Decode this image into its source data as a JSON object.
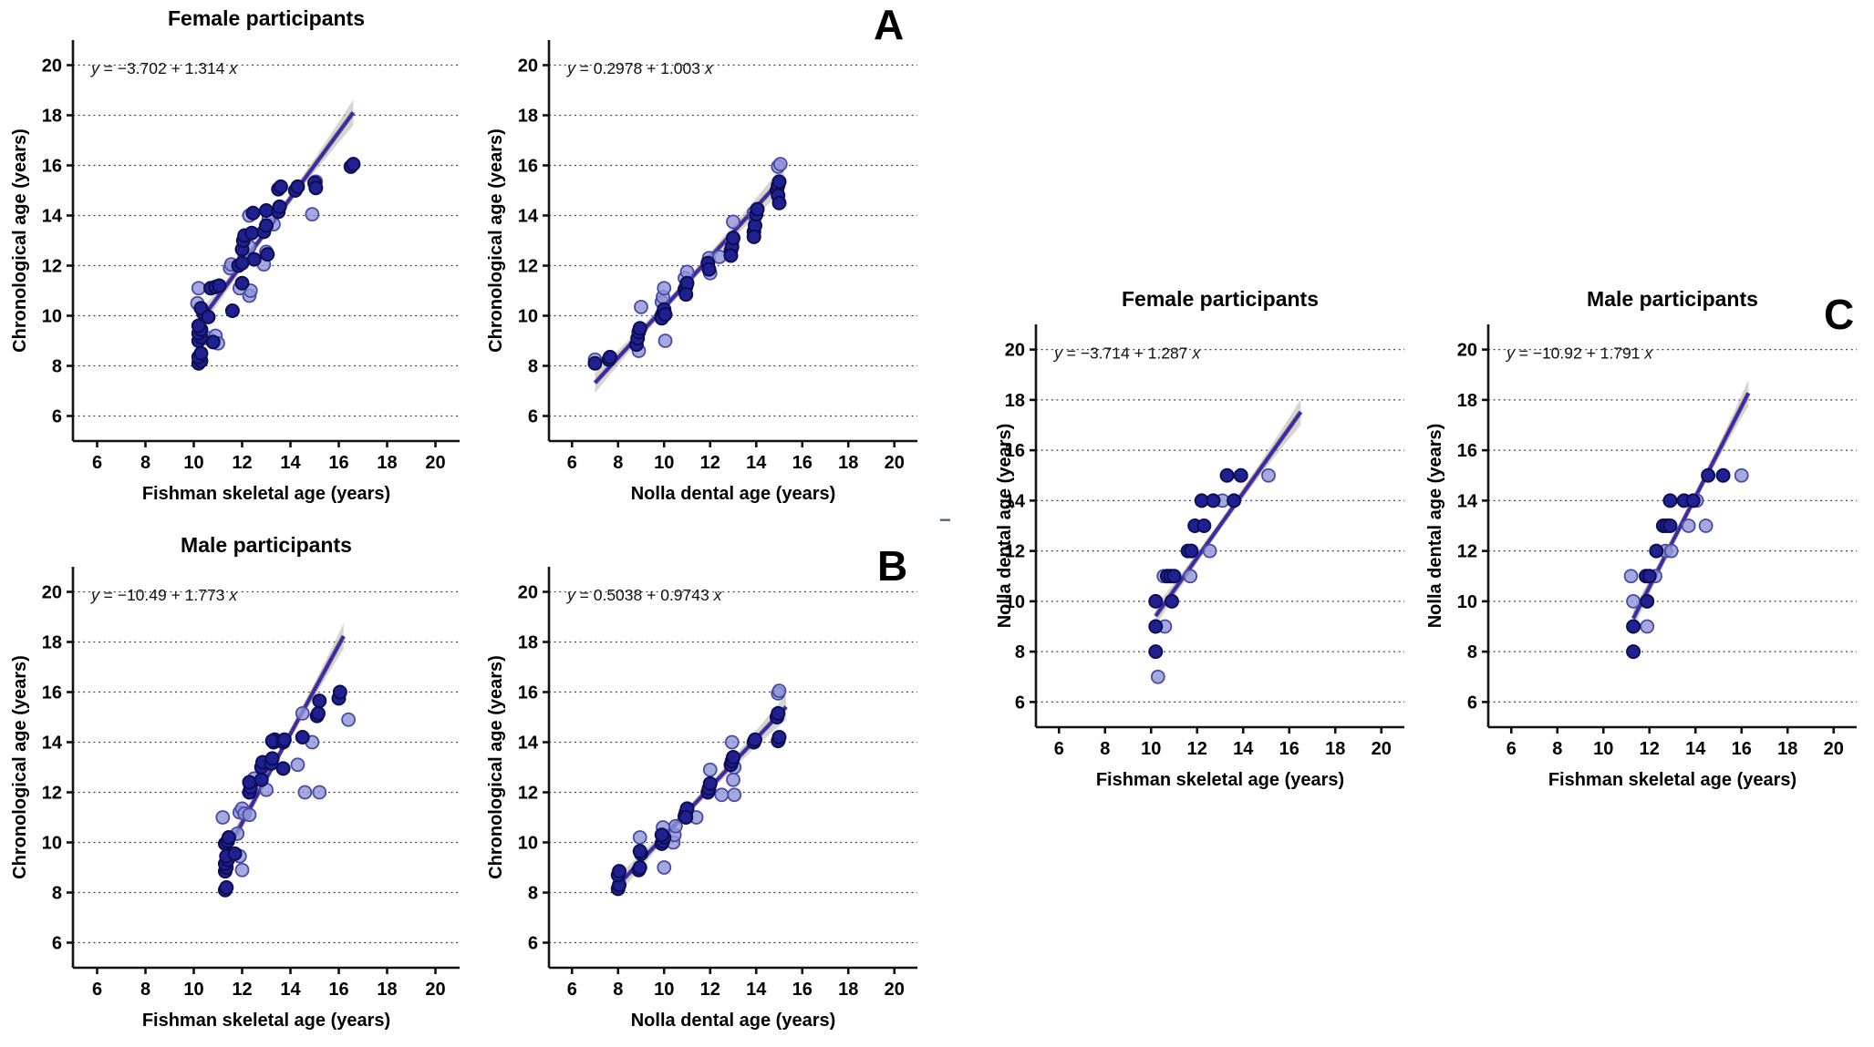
{
  "figure": {
    "panel_a_label": "A",
    "panel_b_label": "B",
    "panel_c_label": "C",
    "artifact_dash": "−"
  },
  "colors": {
    "point_dark": "#1f2191",
    "point_dark_stroke": "#0d0d55",
    "point_light": "#9094d6",
    "point_light_stroke": "#474ba6",
    "line": "#2b2bc0",
    "line_under": "#8a4a3a",
    "ribbon": "#b9b9b9",
    "grid": "#444444",
    "axis": "#111111"
  },
  "chart_data": [
    {
      "type": "scatter",
      "panel": "A",
      "title": "Female participants",
      "equation": "y = −3.702 + 1.314 x",
      "xlabel": "Fishman skeletal age (years)",
      "ylabel": "Chronological age (years)",
      "xlim": [
        5,
        21
      ],
      "ylim": [
        5,
        21
      ],
      "xticks": [
        6,
        8,
        10,
        12,
        14,
        16,
        18,
        20
      ],
      "yticks": [
        6,
        8,
        10,
        12,
        14,
        16,
        18,
        20
      ],
      "grid": "horizontal-dotted",
      "legend": "none",
      "regression": {
        "intercept": -3.702,
        "slope": 1.314,
        "x_start": 10.2,
        "x_end": 16.6
      },
      "points_dark": [
        [
          10.2,
          8.1
        ],
        [
          10.3,
          8.2
        ],
        [
          10.2,
          8.35
        ],
        [
          10.3,
          8.5
        ],
        [
          10.2,
          9.0
        ],
        [
          10.3,
          9.15
        ],
        [
          10.2,
          9.3
        ],
        [
          10.3,
          9.45
        ],
        [
          10.2,
          9.6
        ],
        [
          10.4,
          10.1
        ],
        [
          10.3,
          10.3
        ],
        [
          10.6,
          9.95
        ],
        [
          10.8,
          8.95
        ],
        [
          10.7,
          11.1
        ],
        [
          10.9,
          11.15
        ],
        [
          11.05,
          11.2
        ],
        [
          11.6,
          10.2
        ],
        [
          11.85,
          12.0
        ],
        [
          12.0,
          12.1
        ],
        [
          12.0,
          12.65
        ],
        [
          12.05,
          13.0
        ],
        [
          12.1,
          13.2
        ],
        [
          12.0,
          11.3
        ],
        [
          12.4,
          13.3
        ],
        [
          12.45,
          14.1
        ],
        [
          12.5,
          12.25
        ],
        [
          12.9,
          13.35
        ],
        [
          13.0,
          13.6
        ],
        [
          13.0,
          14.2
        ],
        [
          13.05,
          12.45
        ],
        [
          13.5,
          14.15
        ],
        [
          13.55,
          14.35
        ],
        [
          13.5,
          15.05
        ],
        [
          13.6,
          15.15
        ],
        [
          14.2,
          15.0
        ],
        [
          14.3,
          15.15
        ],
        [
          15.0,
          15.3
        ],
        [
          15.05,
          15.1
        ],
        [
          16.5,
          15.95
        ],
        [
          16.6,
          16.05
        ]
      ],
      "points_light": [
        [
          10.15,
          10.5
        ],
        [
          10.2,
          11.1
        ],
        [
          10.6,
          9.1
        ],
        [
          10.9,
          9.2
        ],
        [
          11.0,
          8.9
        ],
        [
          11.5,
          11.9
        ],
        [
          11.55,
          12.05
        ],
        [
          12.3,
          10.8
        ],
        [
          12.35,
          11.0
        ],
        [
          12.1,
          12.4
        ],
        [
          12.3,
          12.75
        ],
        [
          12.9,
          12.05
        ],
        [
          13.0,
          12.55
        ],
        [
          12.3,
          14.0
        ],
        [
          13.3,
          13.65
        ],
        [
          14.9,
          14.05
        ],
        [
          15.05,
          15.35
        ],
        [
          11.9,
          11.1
        ],
        [
          13.1,
          13.85
        ]
      ]
    },
    {
      "type": "scatter",
      "panel": "A",
      "title": "",
      "equation": "y = 0.2978 + 1.003 x",
      "xlabel": "Nolla dental age (years)",
      "ylabel": "Chronological age (years)",
      "xlim": [
        5,
        21
      ],
      "ylim": [
        5,
        21
      ],
      "xticks": [
        6,
        8,
        10,
        12,
        14,
        16,
        18,
        20
      ],
      "yticks": [
        6,
        8,
        10,
        12,
        14,
        16,
        18,
        20
      ],
      "grid": "horizontal-dotted",
      "legend": "none",
      "regression": {
        "intercept": 0.2978,
        "slope": 1.003,
        "x_start": 7.0,
        "x_end": 15.2
      },
      "points_dark": [
        [
          7.0,
          8.1
        ],
        [
          7.6,
          8.25
        ],
        [
          7.65,
          8.35
        ],
        [
          8.8,
          8.85
        ],
        [
          8.85,
          9.1
        ],
        [
          8.9,
          9.35
        ],
        [
          8.95,
          9.5
        ],
        [
          9.9,
          10.0
        ],
        [
          9.95,
          10.1
        ],
        [
          10.0,
          10.25
        ],
        [
          9.9,
          9.9
        ],
        [
          10.05,
          10.05
        ],
        [
          10.9,
          11.05
        ],
        [
          10.95,
          11.15
        ],
        [
          11.0,
          11.3
        ],
        [
          10.95,
          10.85
        ],
        [
          11.9,
          12.1
        ],
        [
          11.95,
          11.85
        ],
        [
          12.9,
          12.6
        ],
        [
          12.95,
          12.75
        ],
        [
          12.9,
          12.4
        ],
        [
          13.0,
          13.1
        ],
        [
          13.9,
          13.35
        ],
        [
          13.95,
          13.6
        ],
        [
          13.9,
          13.15
        ],
        [
          14.0,
          14.05
        ],
        [
          14.05,
          14.25
        ],
        [
          14.9,
          15.0
        ],
        [
          14.95,
          15.2
        ],
        [
          15.0,
          15.35
        ],
        [
          14.95,
          14.8
        ],
        [
          15.0,
          14.5
        ]
      ],
      "points_light": [
        [
          7.0,
          8.25
        ],
        [
          8.9,
          8.6
        ],
        [
          9.0,
          10.35
        ],
        [
          9.9,
          10.55
        ],
        [
          9.95,
          10.75
        ],
        [
          10.0,
          11.1
        ],
        [
          10.05,
          9.0
        ],
        [
          10.9,
          11.5
        ],
        [
          11.0,
          11.75
        ],
        [
          11.95,
          12.3
        ],
        [
          12.0,
          11.7
        ],
        [
          12.4,
          12.35
        ],
        [
          13.0,
          13.75
        ],
        [
          13.95,
          13.95
        ],
        [
          13.9,
          14.1
        ],
        [
          14.95,
          15.95
        ],
        [
          15.05,
          16.05
        ],
        [
          12.95,
          12.9
        ]
      ]
    },
    {
      "type": "scatter",
      "panel": "B",
      "title": "Male participants",
      "equation": "y = −10.49 + 1.773 x",
      "xlabel": "Fishman skeletal age (years)",
      "ylabel": "Chronological age (years)",
      "xlim": [
        5,
        21
      ],
      "ylim": [
        5,
        21
      ],
      "xticks": [
        6,
        8,
        10,
        12,
        14,
        16,
        18,
        20
      ],
      "yticks": [
        6,
        8,
        10,
        12,
        14,
        16,
        18,
        20
      ],
      "grid": "horizontal-dotted",
      "legend": "none",
      "regression": {
        "intercept": -10.49,
        "slope": 1.773,
        "x_start": 11.3,
        "x_end": 16.2
      },
      "points_dark": [
        [
          11.3,
          8.1
        ],
        [
          11.35,
          8.2
        ],
        [
          11.3,
          8.85
        ],
        [
          11.35,
          9.0
        ],
        [
          11.3,
          9.15
        ],
        [
          11.4,
          9.3
        ],
        [
          11.35,
          9.45
        ],
        [
          11.3,
          9.95
        ],
        [
          11.4,
          10.05
        ],
        [
          11.45,
          10.2
        ],
        [
          11.7,
          9.55
        ],
        [
          12.3,
          12.0
        ],
        [
          12.35,
          12.2
        ],
        [
          12.3,
          12.4
        ],
        [
          12.8,
          13.0
        ],
        [
          12.85,
          13.2
        ],
        [
          12.8,
          12.5
        ],
        [
          13.2,
          13.15
        ],
        [
          13.25,
          13.35
        ],
        [
          13.3,
          14.0
        ],
        [
          13.35,
          14.1
        ],
        [
          13.25,
          14.05
        ],
        [
          13.7,
          14.0
        ],
        [
          13.75,
          14.1
        ],
        [
          13.7,
          12.95
        ],
        [
          14.5,
          14.2
        ],
        [
          15.1,
          15.05
        ],
        [
          15.15,
          15.15
        ],
        [
          15.2,
          15.65
        ],
        [
          16.0,
          15.75
        ],
        [
          16.05,
          16.0
        ]
      ],
      "points_light": [
        [
          11.2,
          11.0
        ],
        [
          11.9,
          11.2
        ],
        [
          12.0,
          11.35
        ],
        [
          12.1,
          11.15
        ],
        [
          11.8,
          10.35
        ],
        [
          11.9,
          9.45
        ],
        [
          12.0,
          8.9
        ],
        [
          12.3,
          11.1
        ],
        [
          12.9,
          12.95
        ],
        [
          13.0,
          12.1
        ],
        [
          14.3,
          13.1
        ],
        [
          14.6,
          12.0
        ],
        [
          15.2,
          12.0
        ],
        [
          14.9,
          14.0
        ],
        [
          16.4,
          14.9
        ],
        [
          14.5,
          15.15
        ],
        [
          12.5,
          12.55
        ]
      ]
    },
    {
      "type": "scatter",
      "panel": "B",
      "title": "",
      "equation": "y = 0.5038 + 0.9743 x",
      "xlabel": "Nolla dental age (years)",
      "ylabel": "Chronological age (years)",
      "xlim": [
        5,
        21
      ],
      "ylim": [
        5,
        21
      ],
      "xticks": [
        6,
        8,
        10,
        12,
        14,
        16,
        18,
        20
      ],
      "yticks": [
        6,
        8,
        10,
        12,
        14,
        16,
        18,
        20
      ],
      "grid": "horizontal-dotted",
      "legend": "none",
      "regression": {
        "intercept": 0.5038,
        "slope": 0.9743,
        "x_start": 8.0,
        "x_end": 15.3
      },
      "points_dark": [
        [
          8.0,
          8.15
        ],
        [
          8.05,
          8.3
        ],
        [
          8.0,
          8.7
        ],
        [
          8.05,
          8.85
        ],
        [
          8.9,
          8.9
        ],
        [
          8.95,
          9.0
        ],
        [
          9.0,
          9.55
        ],
        [
          8.95,
          9.65
        ],
        [
          9.9,
          9.95
        ],
        [
          9.95,
          10.05
        ],
        [
          10.0,
          10.2
        ],
        [
          9.9,
          10.3
        ],
        [
          10.9,
          11.05
        ],
        [
          10.95,
          11.2
        ],
        [
          11.0,
          11.35
        ],
        [
          10.95,
          11.0
        ],
        [
          11.9,
          12.0
        ],
        [
          11.95,
          12.15
        ],
        [
          12.0,
          12.35
        ],
        [
          12.9,
          13.1
        ],
        [
          12.95,
          13.25
        ],
        [
          13.0,
          13.4
        ],
        [
          13.9,
          14.0
        ],
        [
          13.95,
          14.1
        ],
        [
          14.9,
          15.0
        ],
        [
          14.95,
          14.05
        ],
        [
          15.0,
          14.2
        ],
        [
          14.95,
          15.15
        ]
      ],
      "points_light": [
        [
          8.95,
          10.2
        ],
        [
          9.95,
          10.6
        ],
        [
          10.0,
          9.0
        ],
        [
          10.4,
          10.0
        ],
        [
          10.45,
          10.3
        ],
        [
          10.5,
          10.65
        ],
        [
          11.4,
          11.0
        ],
        [
          12.0,
          12.9
        ],
        [
          12.5,
          11.9
        ],
        [
          13.0,
          12.5
        ],
        [
          13.05,
          11.9
        ],
        [
          12.95,
          14.0
        ],
        [
          14.95,
          15.95
        ],
        [
          15.0,
          16.05
        ],
        [
          13.05,
          13.0
        ]
      ]
    },
    {
      "type": "scatter",
      "panel": "C",
      "title": "Female participants",
      "equation": "y = −3.714 + 1.287 x",
      "xlabel": "Fishman skeletal age (years)",
      "ylabel": "Nolla dental age (years)",
      "xlim": [
        5,
        21
      ],
      "ylim": [
        5,
        21
      ],
      "xticks": [
        6,
        8,
        10,
        12,
        14,
        16,
        18,
        20
      ],
      "yticks": [
        6,
        8,
        10,
        12,
        14,
        16,
        18,
        20
      ],
      "grid": "horizontal-dotted",
      "legend": "none",
      "regression": {
        "intercept": -3.714,
        "slope": 1.287,
        "x_start": 10.2,
        "x_end": 16.5
      },
      "points_dark": [
        [
          10.2,
          8.0
        ],
        [
          10.2,
          9.0
        ],
        [
          10.2,
          10.0
        ],
        [
          10.9,
          10.0
        ],
        [
          10.7,
          11.0
        ],
        [
          10.85,
          11.0
        ],
        [
          11.0,
          11.0
        ],
        [
          11.6,
          12.0
        ],
        [
          11.75,
          12.0
        ],
        [
          11.9,
          13.0
        ],
        [
          12.3,
          13.0
        ],
        [
          12.2,
          14.0
        ],
        [
          12.7,
          14.0
        ],
        [
          13.6,
          14.0
        ],
        [
          13.3,
          15.0
        ],
        [
          13.9,
          15.0
        ]
      ],
      "points_light": [
        [
          10.3,
          7.0
        ],
        [
          10.6,
          9.0
        ],
        [
          10.55,
          11.0
        ],
        [
          11.7,
          11.0
        ],
        [
          12.55,
          12.0
        ],
        [
          13.1,
          14.0
        ],
        [
          15.1,
          15.0
        ]
      ]
    },
    {
      "type": "scatter",
      "panel": "C",
      "title": "Male participants",
      "equation": "y = −10.92 + 1.791 x",
      "xlabel": "Fishman skeletal age (years)",
      "ylabel": "Nolla dental age (years)",
      "xlim": [
        5,
        21
      ],
      "ylim": [
        5,
        21
      ],
      "xticks": [
        6,
        8,
        10,
        12,
        14,
        16,
        18,
        20
      ],
      "yticks": [
        6,
        8,
        10,
        12,
        14,
        16,
        18,
        20
      ],
      "grid": "horizontal-dotted",
      "legend": "none",
      "regression": {
        "intercept": -10.92,
        "slope": 1.791,
        "x_start": 11.3,
        "x_end": 16.3
      },
      "points_dark": [
        [
          11.3,
          8.0
        ],
        [
          11.3,
          9.0
        ],
        [
          11.9,
          10.0
        ],
        [
          11.85,
          11.0
        ],
        [
          12.0,
          11.0
        ],
        [
          12.3,
          12.0
        ],
        [
          12.6,
          13.0
        ],
        [
          12.75,
          13.0
        ],
        [
          12.9,
          13.0
        ],
        [
          12.9,
          14.0
        ],
        [
          13.5,
          14.0
        ],
        [
          13.9,
          14.0
        ],
        [
          14.55,
          15.0
        ],
        [
          15.2,
          15.0
        ]
      ],
      "points_light": [
        [
          11.9,
          9.0
        ],
        [
          11.3,
          10.0
        ],
        [
          11.2,
          11.0
        ],
        [
          12.25,
          11.0
        ],
        [
          12.7,
          12.0
        ],
        [
          12.95,
          12.0
        ],
        [
          13.7,
          13.0
        ],
        [
          14.45,
          13.0
        ],
        [
          14.05,
          14.0
        ],
        [
          16.0,
          15.0
        ]
      ]
    }
  ]
}
